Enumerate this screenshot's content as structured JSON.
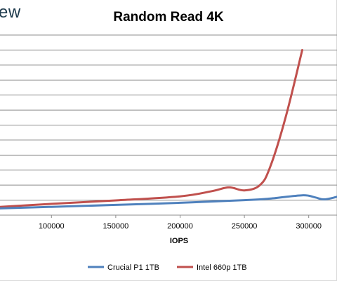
{
  "header": {
    "logo_fragment": "ew"
  },
  "chart_data": {
    "type": "line",
    "title": "Random Read 4K",
    "xlabel": "IOPS",
    "ylabel": "",
    "xlim": [
      60000,
      322000
    ],
    "ylim": [
      0,
      12
    ],
    "x_ticks": [
      100000,
      150000,
      200000,
      250000,
      300000
    ],
    "x_tick_labels": [
      "100000",
      "150000",
      "200000",
      "250000",
      "300000"
    ],
    "y_gridlines": [
      1,
      2,
      3,
      4,
      5,
      6,
      7,
      8,
      9,
      10,
      11,
      12
    ],
    "grid": true,
    "legend_position": "bottom",
    "series": [
      {
        "name": "Crucial P1 1TB",
        "color": "#4f81bd",
        "points": [
          [
            60000,
            0.45
          ],
          [
            100000,
            0.55
          ],
          [
            150000,
            0.68
          ],
          [
            200000,
            0.82
          ],
          [
            250000,
            1.0
          ],
          [
            270000,
            1.1
          ],
          [
            295000,
            1.32
          ],
          [
            305000,
            1.18
          ],
          [
            312000,
            1.05
          ],
          [
            322000,
            1.22
          ]
        ]
      },
      {
        "name": "Intel 660p 1TB",
        "color": "#c0504d",
        "points": [
          [
            60000,
            0.55
          ],
          [
            100000,
            0.75
          ],
          [
            150000,
            0.98
          ],
          [
            200000,
            1.25
          ],
          [
            225000,
            1.6
          ],
          [
            238000,
            1.85
          ],
          [
            250000,
            1.65
          ],
          [
            262000,
            2.0
          ],
          [
            270000,
            3.2
          ],
          [
            282000,
            6.5
          ],
          [
            295000,
            11.0
          ]
        ]
      }
    ]
  }
}
